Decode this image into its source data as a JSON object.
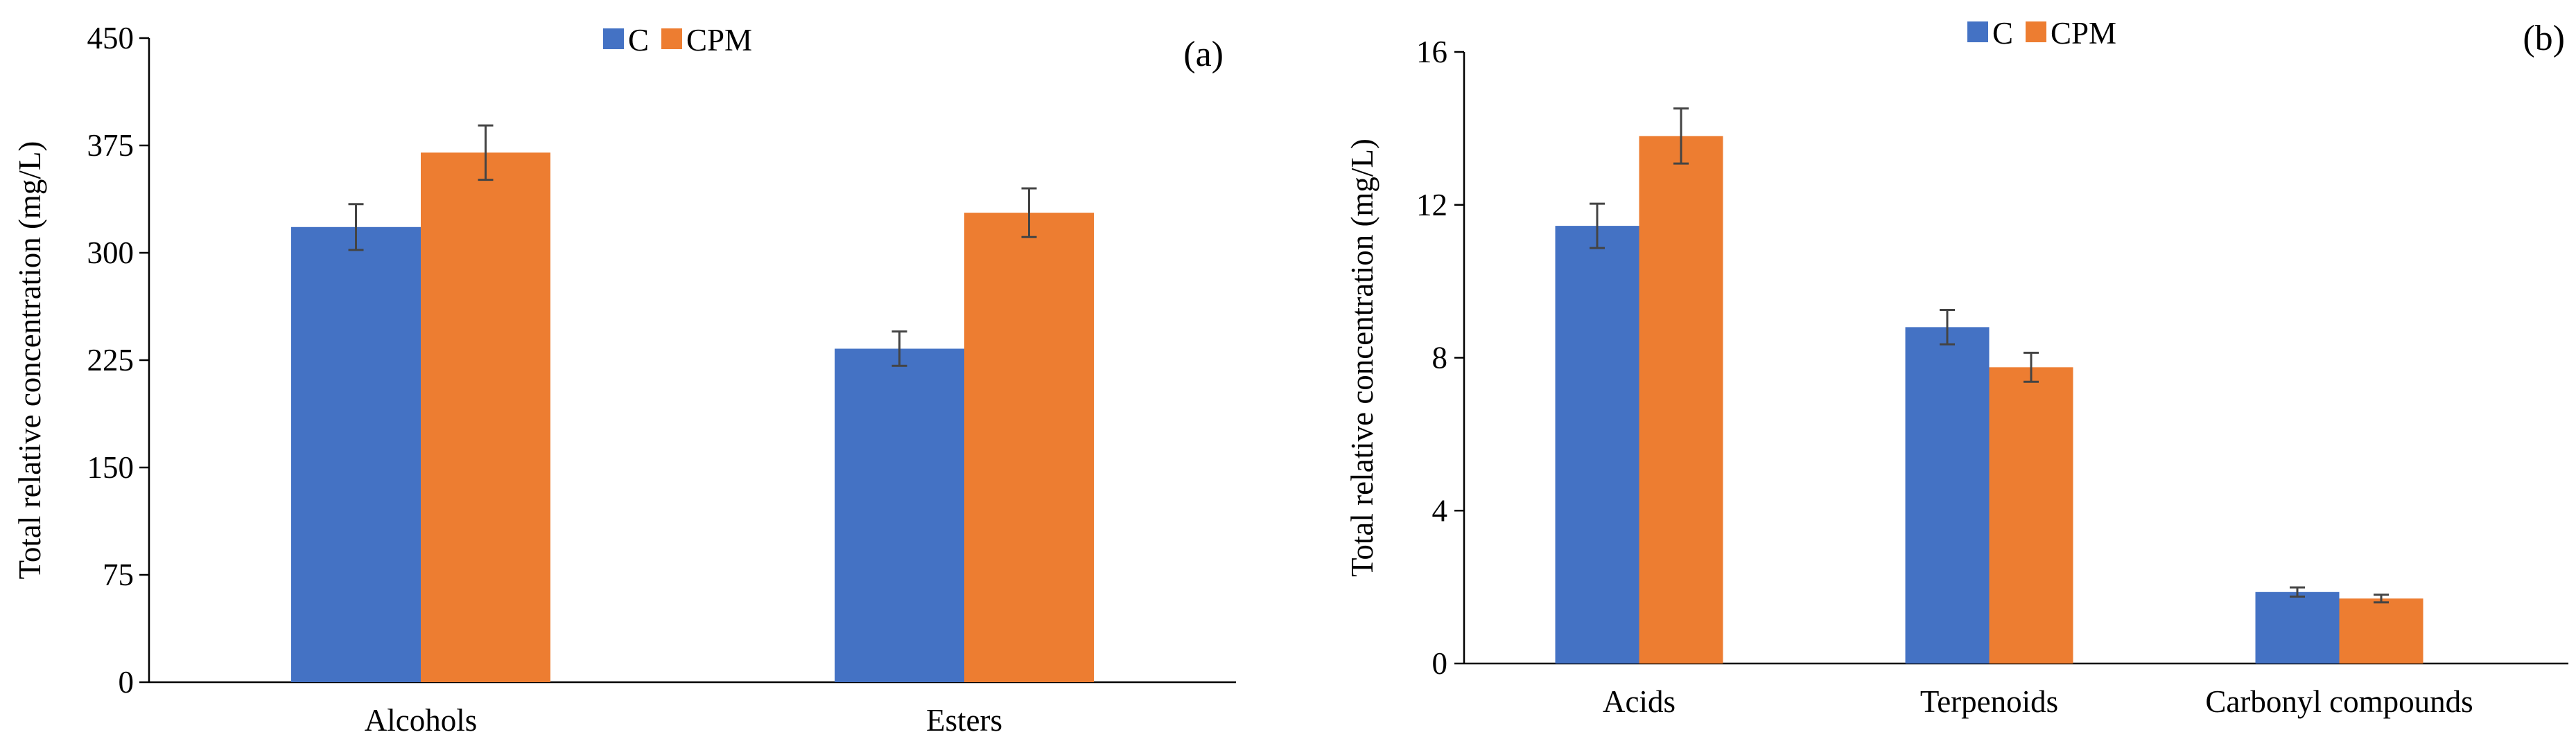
{
  "chart_data": [
    {
      "type": "bar",
      "panel_label": "(a)",
      "categories": [
        "Alcohols",
        "Esters"
      ],
      "series": [
        {
          "name": "C",
          "color": "#4472C4",
          "values": [
            318,
            233
          ],
          "errors": [
            16,
            12
          ]
        },
        {
          "name": "CPM",
          "color": "#ED7D31",
          "values": [
            370,
            328
          ],
          "errors": [
            19,
            17
          ]
        }
      ],
      "ylabel": "Total relative concentration (mg/L)",
      "xlabel": "",
      "ylim": [
        0,
        450
      ],
      "yticks": [
        "0",
        "75",
        "150",
        "225",
        "300",
        "375",
        "450"
      ],
      "grid": false,
      "legend": "top-center"
    },
    {
      "type": "bar",
      "panel_label": "(b)",
      "categories": [
        "Acids",
        "Terpenoids",
        "Carbonyl compounds"
      ],
      "series": [
        {
          "name": "C",
          "color": "#4472C4",
          "values": [
            11.45,
            8.8,
            1.87
          ],
          "errors": [
            0.58,
            0.45,
            0.12
          ]
        },
        {
          "name": "CPM",
          "color": "#ED7D31",
          "values": [
            13.8,
            7.75,
            1.7
          ],
          "errors": [
            0.72,
            0.38,
            0.1
          ]
        }
      ],
      "ylabel": "Total relative concentration (mg/L)",
      "xlabel": "",
      "ylim": [
        0,
        16
      ],
      "yticks": [
        "0",
        "4",
        "8",
        "12",
        "16"
      ],
      "grid": false,
      "legend": "top-center"
    }
  ]
}
